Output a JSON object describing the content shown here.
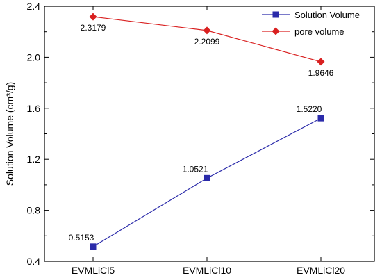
{
  "chart_data": {
    "type": "line",
    "title": "",
    "xlabel": "",
    "ylabel": "Solution Volume (cm³/g)",
    "ylim": [
      0.4,
      2.4
    ],
    "yticks": [
      0.4,
      0.8,
      1.2,
      1.6,
      2.0,
      2.4
    ],
    "ytick_labels": [
      "0.4",
      "0.8",
      "1.2",
      "1.6",
      "2.0",
      "2.4"
    ],
    "categories": [
      "EVMLiCl5",
      "EVMLiCl10",
      "EVMLiCl20"
    ],
    "grid": false,
    "legend_position": "top-right",
    "series": [
      {
        "name": "Solution Volume",
        "values": [
          0.5153,
          1.0521,
          1.522
        ],
        "labels": [
          "0.5153",
          "1.0521",
          "1.5220"
        ],
        "color": "#2b2baa",
        "marker": "square"
      },
      {
        "name": "pore volume",
        "values": [
          2.3179,
          2.2099,
          1.9646
        ],
        "labels": [
          "2.3179",
          "2.2099",
          "1.9646"
        ],
        "color": "#d92020",
        "marker": "diamond"
      }
    ]
  }
}
